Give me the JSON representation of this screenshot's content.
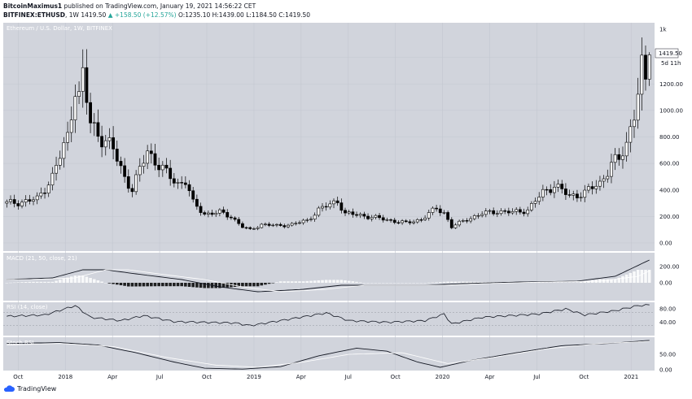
{
  "header": {
    "author": "BitcoinMaximus1",
    "published": "published on TradingView.com, January 19, 2021 14:56:22 CET",
    "symbol": "BITFINEX:ETHUSD",
    "interval": "1W",
    "last_price": "1419.50",
    "change": "+158.50 (+12.57%)",
    "ohlc": "O:1235.10 H:1439.00 L:1184.50 C:1419.50"
  },
  "footer": {
    "brand": "TradingView"
  },
  "colors": {
    "background": "#d1d4dc",
    "grid": "#c0c4ce",
    "text": "#131722",
    "header_up": "#26a69a"
  },
  "chart_data": [
    {
      "type": "candlestick",
      "title": "Ethereum / U.S. Dollar, 1W, BITFINEX",
      "price_axis_ticks": [
        "1k",
        "1200.00",
        "1000.00",
        "800.00",
        "600.00",
        "400.00",
        "200.00",
        "0.00"
      ],
      "time_axis_ticks": [
        "Oct",
        "2018",
        "Apr",
        "Jul",
        "Oct",
        "2019",
        "Apr",
        "Jul",
        "Oct",
        "2020",
        "Apr",
        "Jul",
        "Oct",
        "2021"
      ],
      "last_price_label": "1419.50",
      "countdown_label": "5d 11h",
      "ylim": [
        0,
        1600
      ],
      "grid": true,
      "anchors_weekly": [
        {
          "w": 0,
          "c": 300
        },
        {
          "w": 4,
          "c": 310
        },
        {
          "w": 8,
          "c": 330
        },
        {
          "w": 12,
          "c": 500
        },
        {
          "w": 16,
          "c": 800
        },
        {
          "w": 18,
          "c": 1200
        },
        {
          "w": 19,
          "c": 1100
        },
        {
          "w": 20,
          "c": 1250
        },
        {
          "w": 22,
          "c": 900
        },
        {
          "w": 25,
          "c": 800
        },
        {
          "w": 28,
          "c": 700
        },
        {
          "w": 31,
          "c": 500
        },
        {
          "w": 33,
          "c": 400
        },
        {
          "w": 35,
          "c": 550
        },
        {
          "w": 37,
          "c": 700
        },
        {
          "w": 39,
          "c": 620
        },
        {
          "w": 42,
          "c": 520
        },
        {
          "w": 45,
          "c": 450
        },
        {
          "w": 47,
          "c": 470
        },
        {
          "w": 49,
          "c": 300
        },
        {
          "w": 52,
          "c": 220
        },
        {
          "w": 56,
          "c": 230
        },
        {
          "w": 59,
          "c": 200
        },
        {
          "w": 62,
          "c": 120
        },
        {
          "w": 64,
          "c": 100
        },
        {
          "w": 67,
          "c": 140
        },
        {
          "w": 71,
          "c": 130
        },
        {
          "w": 75,
          "c": 140
        },
        {
          "w": 79,
          "c": 170
        },
        {
          "w": 82,
          "c": 250
        },
        {
          "w": 85,
          "c": 290
        },
        {
          "w": 87,
          "c": 320
        },
        {
          "w": 89,
          "c": 220
        },
        {
          "w": 93,
          "c": 210
        },
        {
          "w": 97,
          "c": 190
        },
        {
          "w": 101,
          "c": 170
        },
        {
          "w": 105,
          "c": 150
        },
        {
          "w": 109,
          "c": 180
        },
        {
          "w": 113,
          "c": 260
        },
        {
          "w": 115,
          "c": 230
        },
        {
          "w": 117,
          "c": 120
        },
        {
          "w": 121,
          "c": 180
        },
        {
          "w": 125,
          "c": 220
        },
        {
          "w": 129,
          "c": 240
        },
        {
          "w": 133,
          "c": 230
        },
        {
          "w": 137,
          "c": 250
        },
        {
          "w": 141,
          "c": 380
        },
        {
          "w": 144,
          "c": 440
        },
        {
          "w": 148,
          "c": 350
        },
        {
          "w": 152,
          "c": 380
        },
        {
          "w": 156,
          "c": 450
        },
        {
          "w": 159,
          "c": 600
        },
        {
          "w": 161,
          "c": 620
        },
        {
          "w": 163,
          "c": 750
        },
        {
          "w": 165,
          "c": 1000
        },
        {
          "w": 167,
          "c": 1300
        },
        {
          "w": 168,
          "c": 1235.1
        },
        {
          "w": 169,
          "c": 1419.5
        }
      ]
    },
    {
      "type": "line",
      "title": "MACD (21, 50, close, 21)",
      "axis_ticks": [
        "200.00",
        "0.00"
      ],
      "anchors": [
        {
          "w": 0,
          "v": 40
        },
        {
          "w": 12,
          "v": 60
        },
        {
          "w": 20,
          "v": 160
        },
        {
          "w": 26,
          "v": 160
        },
        {
          "w": 34,
          "v": 110
        },
        {
          "w": 46,
          "v": 40
        },
        {
          "w": 56,
          "v": -50
        },
        {
          "w": 66,
          "v": -110
        },
        {
          "w": 78,
          "v": -80
        },
        {
          "w": 88,
          "v": -30
        },
        {
          "w": 100,
          "v": -30
        },
        {
          "w": 110,
          "v": -30
        },
        {
          "w": 120,
          "v": -10
        },
        {
          "w": 135,
          "v": 10
        },
        {
          "w": 150,
          "v": 20
        },
        {
          "w": 160,
          "v": 80
        },
        {
          "w": 169,
          "v": 280
        }
      ]
    },
    {
      "type": "line",
      "title": "RSI (14, close)",
      "axis_ticks": [
        "80.00",
        "40.00"
      ],
      "levels": [
        70,
        30
      ],
      "anchors": [
        {
          "w": 0,
          "v": 58
        },
        {
          "w": 10,
          "v": 62
        },
        {
          "w": 18,
          "v": 90
        },
        {
          "w": 22,
          "v": 55
        },
        {
          "w": 30,
          "v": 45
        },
        {
          "w": 36,
          "v": 60
        },
        {
          "w": 44,
          "v": 42
        },
        {
          "w": 52,
          "v": 40
        },
        {
          "w": 60,
          "v": 38
        },
        {
          "w": 64,
          "v": 30
        },
        {
          "w": 72,
          "v": 45
        },
        {
          "w": 84,
          "v": 68
        },
        {
          "w": 90,
          "v": 45
        },
        {
          "w": 100,
          "v": 40
        },
        {
          "w": 110,
          "v": 45
        },
        {
          "w": 115,
          "v": 65
        },
        {
          "w": 117,
          "v": 35
        },
        {
          "w": 125,
          "v": 55
        },
        {
          "w": 140,
          "v": 65
        },
        {
          "w": 147,
          "v": 80
        },
        {
          "w": 152,
          "v": 62
        },
        {
          "w": 160,
          "v": 75
        },
        {
          "w": 166,
          "v": 90
        },
        {
          "w": 169,
          "v": 92
        }
      ]
    },
    {
      "type": "line",
      "title": "Stoch RSI",
      "axis_ticks": [
        "50.00",
        "0.00"
      ],
      "anchors_k": [
        {
          "w": 0,
          "v": 85
        },
        {
          "w": 14,
          "v": 88
        },
        {
          "w": 24,
          "v": 80
        },
        {
          "w": 34,
          "v": 55
        },
        {
          "w": 44,
          "v": 25
        },
        {
          "w": 52,
          "v": 5
        },
        {
          "w": 62,
          "v": 2
        },
        {
          "w": 72,
          "v": 10
        },
        {
          "w": 82,
          "v": 45
        },
        {
          "w": 92,
          "v": 70
        },
        {
          "w": 100,
          "v": 60
        },
        {
          "w": 108,
          "v": 25
        },
        {
          "w": 114,
          "v": 8
        },
        {
          "w": 122,
          "v": 30
        },
        {
          "w": 134,
          "v": 55
        },
        {
          "w": 146,
          "v": 78
        },
        {
          "w": 158,
          "v": 85
        },
        {
          "w": 169,
          "v": 95
        }
      ],
      "anchors_d": [
        {
          "w": 0,
          "v": 80
        },
        {
          "w": 14,
          "v": 85
        },
        {
          "w": 28,
          "v": 75
        },
        {
          "w": 42,
          "v": 40
        },
        {
          "w": 55,
          "v": 15
        },
        {
          "w": 66,
          "v": 8
        },
        {
          "w": 78,
          "v": 25
        },
        {
          "w": 90,
          "v": 50
        },
        {
          "w": 104,
          "v": 55
        },
        {
          "w": 116,
          "v": 20
        },
        {
          "w": 128,
          "v": 40
        },
        {
          "w": 142,
          "v": 68
        },
        {
          "w": 156,
          "v": 85
        },
        {
          "w": 169,
          "v": 92
        }
      ]
    }
  ]
}
